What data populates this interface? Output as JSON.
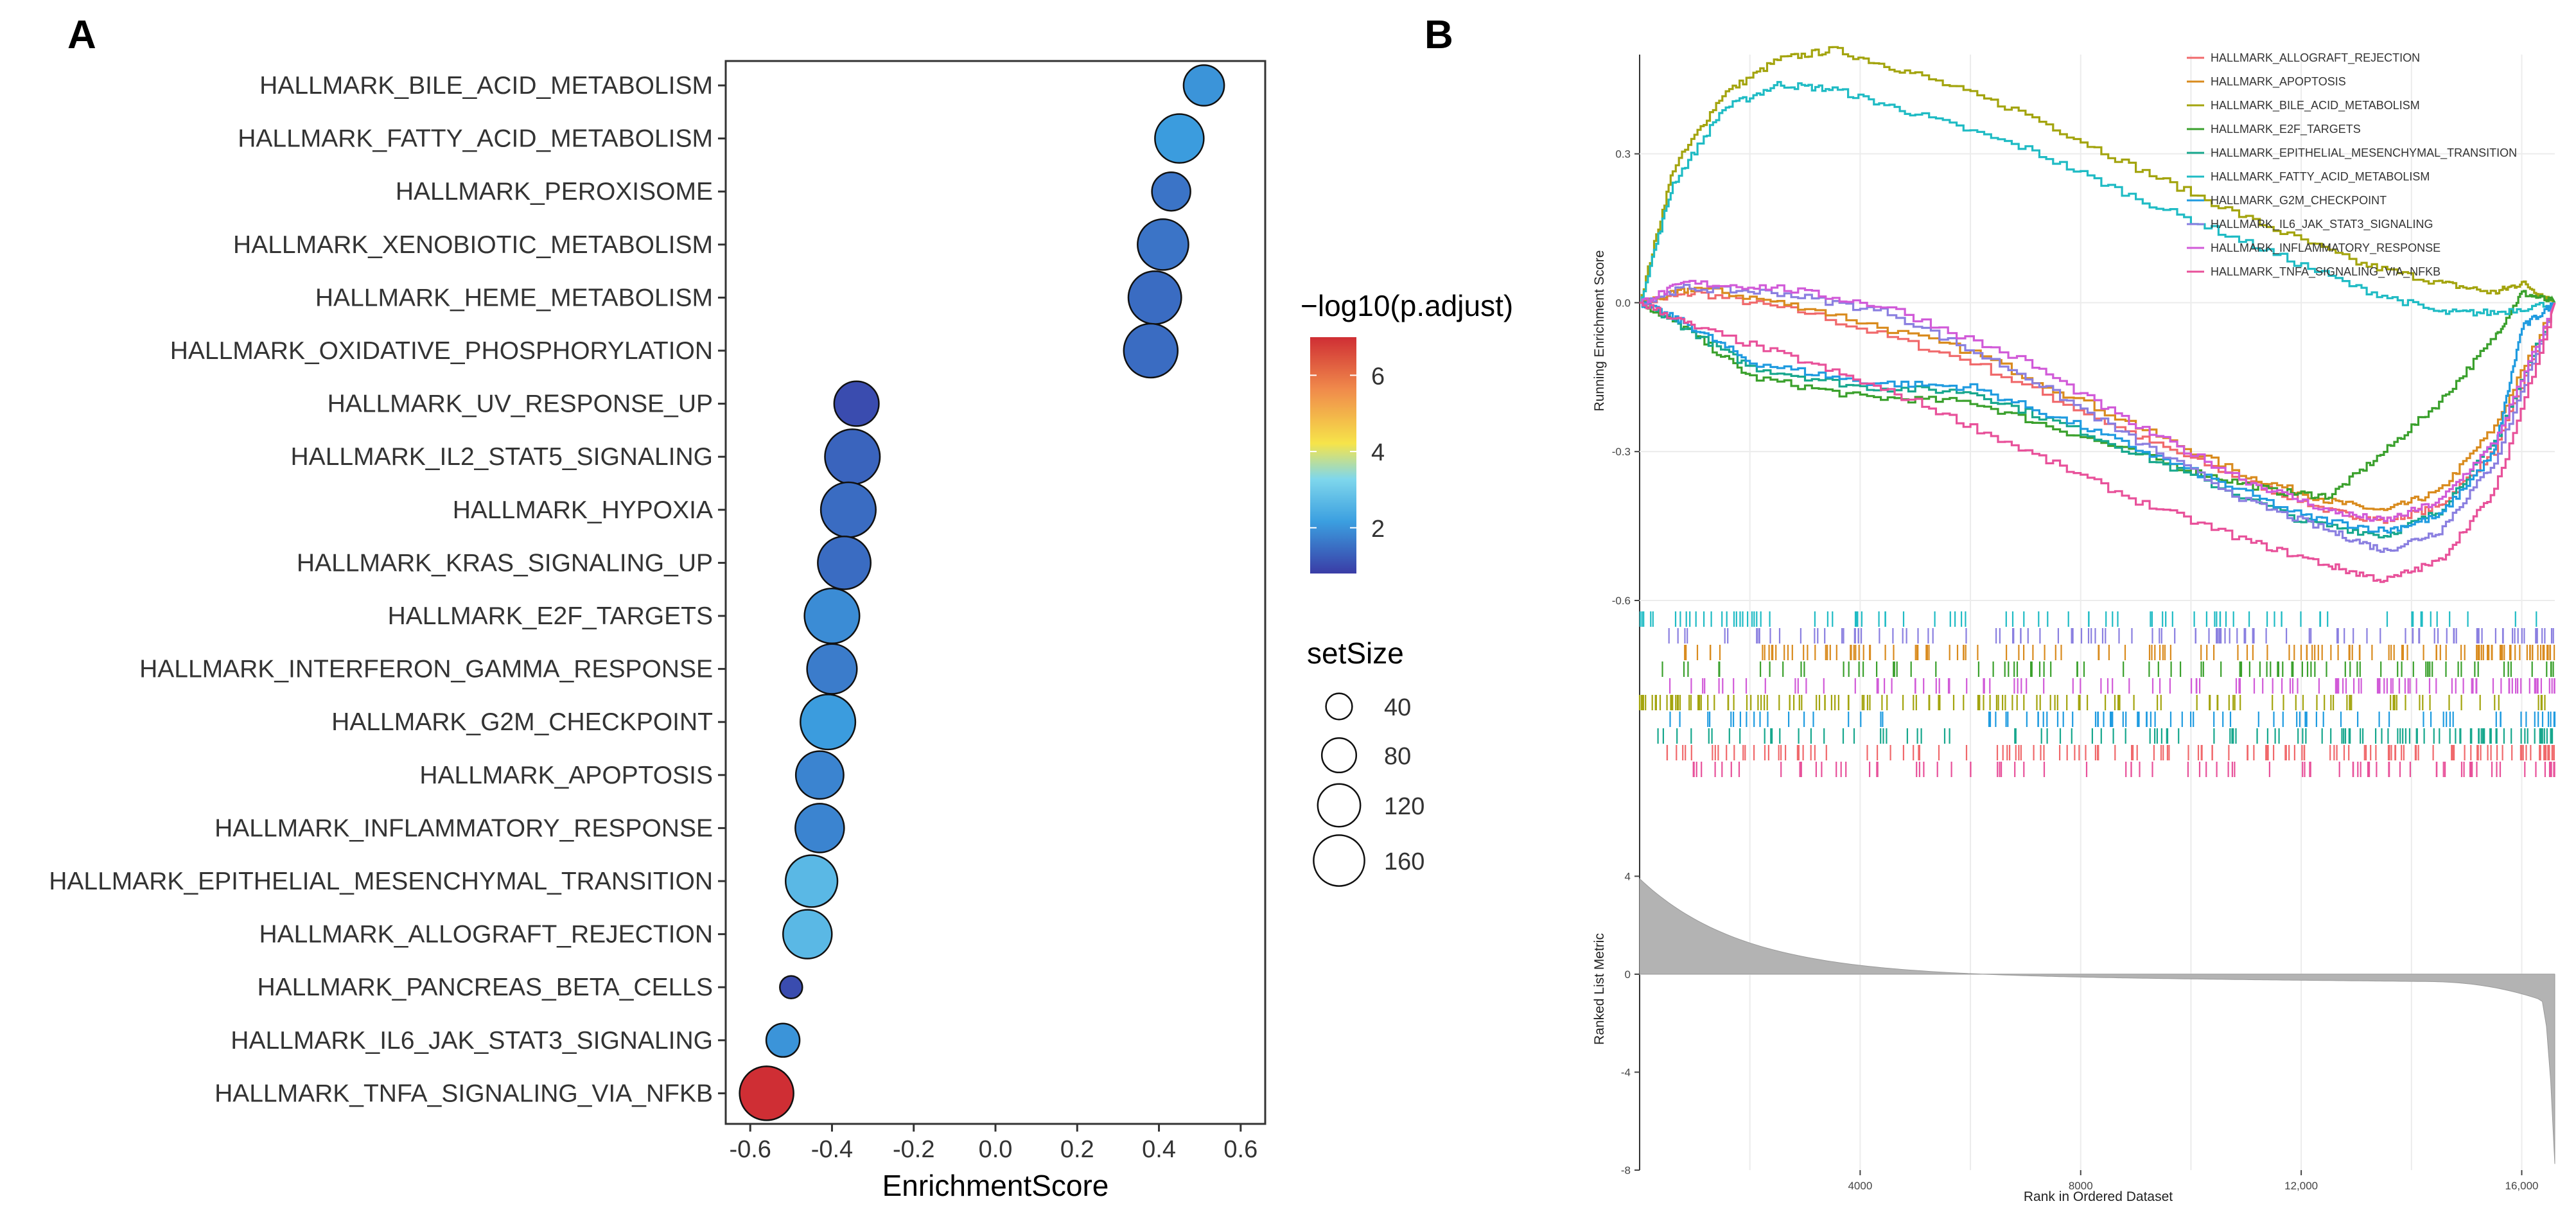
{
  "panel_labels": {
    "a": "A",
    "b": "B"
  },
  "chart_data": [
    {
      "type": "scatter",
      "subtype": "dotplot",
      "panel": "A",
      "xlabel": "EnrichmentScore",
      "xlim": [
        -0.66,
        0.66
      ],
      "xticks": [
        "-0.6",
        "-0.4",
        "-0.2",
        "0.0",
        "0.2",
        "0.4",
        "0.6"
      ],
      "xtick_values": [
        -0.6,
        -0.4,
        -0.2,
        0.0,
        0.2,
        0.4,
        0.6
      ],
      "color_legend": {
        "title": "−log10(p.adjust)",
        "ticks": [
          "2",
          "4",
          "6"
        ],
        "tick_values": [
          2,
          4,
          6
        ],
        "range": [
          0.8,
          7.0
        ],
        "colors": [
          "#3a3ca6",
          "#3b9fe0",
          "#7fd7ec",
          "#f6e44a",
          "#f08a4b",
          "#cf2e34"
        ]
      },
      "size_legend": {
        "title": "setSize",
        "labels": [
          "40",
          "80",
          "120",
          "160"
        ],
        "values": [
          40,
          80,
          120,
          160
        ]
      },
      "terms": [
        {
          "name": "HALLMARK_BILE_ACID_METABOLISM",
          "es": 0.51,
          "nlogp": 1.9,
          "size": 110
        },
        {
          "name": "HALLMARK_FATTY_ACID_METABOLISM",
          "es": 0.45,
          "nlogp": 2.0,
          "size": 150
        },
        {
          "name": "HALLMARK_PEROXISOME",
          "es": 0.43,
          "nlogp": 1.5,
          "size": 100
        },
        {
          "name": "HALLMARK_XENOBIOTIC_METABOLISM",
          "es": 0.41,
          "nlogp": 1.5,
          "size": 160
        },
        {
          "name": "HALLMARK_HEME_METABOLISM",
          "es": 0.39,
          "nlogp": 1.4,
          "size": 170
        },
        {
          "name": "HALLMARK_OXIDATIVE_PHOSPHORYLATION",
          "es": 0.38,
          "nlogp": 1.4,
          "size": 175
        },
        {
          "name": "HALLMARK_UV_RESPONSE_UP",
          "es": -0.34,
          "nlogp": 1.0,
          "size": 130
        },
        {
          "name": "HALLMARK_IL2_STAT5_SIGNALING",
          "es": -0.35,
          "nlogp": 1.3,
          "size": 180
        },
        {
          "name": "HALLMARK_HYPOXIA",
          "es": -0.36,
          "nlogp": 1.4,
          "size": 180
        },
        {
          "name": "HALLMARK_KRAS_SIGNALING_UP",
          "es": -0.37,
          "nlogp": 1.4,
          "size": 170
        },
        {
          "name": "HALLMARK_E2F_TARGETS",
          "es": -0.4,
          "nlogp": 1.8,
          "size": 180
        },
        {
          "name": "HALLMARK_INTERFERON_GAMMA_RESPONSE",
          "es": -0.4,
          "nlogp": 1.6,
          "size": 155
        },
        {
          "name": "HALLMARK_G2M_CHECKPOINT",
          "es": -0.41,
          "nlogp": 2.0,
          "size": 180
        },
        {
          "name": "HALLMARK_APOPTOSIS",
          "es": -0.43,
          "nlogp": 1.7,
          "size": 145
        },
        {
          "name": "HALLMARK_INFLAMMATORY_RESPONSE",
          "es": -0.43,
          "nlogp": 1.7,
          "size": 150
        },
        {
          "name": "HALLMARK_EPITHELIAL_MESENCHYMAL_TRANSITION",
          "es": -0.45,
          "nlogp": 2.6,
          "size": 165
        },
        {
          "name": "HALLMARK_ALLOGRAFT_REJECTION",
          "es": -0.46,
          "nlogp": 2.6,
          "size": 150
        },
        {
          "name": "HALLMARK_PANCREAS_BETA_CELLS",
          "es": -0.5,
          "nlogp": 1.0,
          "size": 22
        },
        {
          "name": "HALLMARK_IL6_JAK_STAT3_SIGNALING",
          "es": -0.52,
          "nlogp": 1.9,
          "size": 75
        },
        {
          "name": "HALLMARK_TNFA_SIGNALING_VIA_NFKB",
          "es": -0.56,
          "nlogp": 7.0,
          "size": 175
        }
      ]
    },
    {
      "type": "line",
      "subtype": "gsea_plot",
      "panel": "B",
      "xlabel": "Rank in Ordered Dataset",
      "ylabel_top": "Running Enrichment Score",
      "ylabel_bottom": "Ranked List Metric",
      "xlim": [
        0,
        16600
      ],
      "xticks": [
        "4000",
        "8000",
        "12,000",
        "16,000"
      ],
      "xtick_values": [
        4000,
        8000,
        12000,
        16000
      ],
      "es_ylim": [
        -0.6,
        0.5
      ],
      "es_yticks": [
        "0.3",
        "0.0",
        "-0.3",
        "-0.6"
      ],
      "es_ytick_values": [
        0.3,
        0.0,
        -0.3,
        -0.6
      ],
      "metric_ylim": [
        -8,
        7
      ],
      "metric_yticks": [
        "4",
        "0",
        "-4",
        "-8"
      ],
      "metric_ytick_values": [
        4,
        0,
        -4,
        -8
      ],
      "series": [
        {
          "name": "HALLMARK_ALLOGRAFT_REJECTION",
          "color": "#f0696b",
          "x": [
            0,
            1000,
            3000,
            6000,
            9000,
            11000,
            12500,
            13500,
            14500,
            15500,
            16600
          ],
          "y": [
            0.0,
            0.02,
            -0.02,
            -0.12,
            -0.27,
            -0.36,
            -0.42,
            -0.44,
            -0.41,
            -0.3,
            0.0
          ]
        },
        {
          "name": "HALLMARK_APOPTOSIS",
          "color": "#d98b1e",
          "x": [
            0,
            1000,
            3000,
            6000,
            9000,
            11000,
            12500,
            13500,
            14500,
            15500,
            16600
          ],
          "y": [
            0.0,
            0.03,
            -0.01,
            -0.1,
            -0.25,
            -0.35,
            -0.4,
            -0.42,
            -0.38,
            -0.25,
            0.0
          ]
        },
        {
          "name": "HALLMARK_BILE_ACID_METABOLISM",
          "color": "#a3a40e",
          "x": [
            0,
            600,
            1500,
            2500,
            3500,
            5000,
            7000,
            9000,
            11000,
            13000,
            14500,
            15500,
            16000,
            16600
          ],
          "y": [
            0.0,
            0.27,
            0.42,
            0.49,
            0.51,
            0.46,
            0.38,
            0.27,
            0.17,
            0.08,
            0.04,
            0.02,
            0.04,
            0.0
          ]
        },
        {
          "name": "HALLMARK_E2F_TARGETS",
          "color": "#3aa02c",
          "x": [
            0,
            800,
            2000,
            4000,
            6000,
            8000,
            10000,
            11500,
            12500,
            13500,
            14500,
            15500,
            16000,
            16600
          ],
          "y": [
            0.0,
            -0.05,
            -0.15,
            -0.19,
            -0.2,
            -0.27,
            -0.34,
            -0.38,
            -0.39,
            -0.3,
            -0.2,
            -0.07,
            0.02,
            0.0
          ]
        },
        {
          "name": "HALLMARK_EPITHELIAL_MESENCHYMAL_TRANSITION",
          "color": "#17a78d",
          "x": [
            0,
            800,
            2000,
            4000,
            6000,
            8000,
            10000,
            12000,
            13500,
            14500,
            15500,
            16600
          ],
          "y": [
            0.0,
            -0.05,
            -0.13,
            -0.17,
            -0.18,
            -0.26,
            -0.35,
            -0.44,
            -0.47,
            -0.42,
            -0.28,
            0.0
          ]
        },
        {
          "name": "HALLMARK_FATTY_ACID_METABOLISM",
          "color": "#1fbbc4",
          "x": [
            0,
            600,
            1500,
            2500,
            3500,
            5000,
            7000,
            9000,
            11000,
            13000,
            14500,
            15500,
            16600
          ],
          "y": [
            0.0,
            0.24,
            0.39,
            0.44,
            0.43,
            0.38,
            0.31,
            0.21,
            0.12,
            0.03,
            -0.02,
            -0.02,
            0.0
          ]
        },
        {
          "name": "HALLMARK_G2M_CHECKPOINT",
          "color": "#1f9be0",
          "x": [
            0,
            800,
            2000,
            4000,
            6000,
            8000,
            10000,
            12000,
            13500,
            14500,
            15500,
            16000,
            16600
          ],
          "y": [
            0.0,
            -0.04,
            -0.12,
            -0.16,
            -0.17,
            -0.25,
            -0.34,
            -0.43,
            -0.46,
            -0.43,
            -0.3,
            -0.05,
            0.0
          ]
        },
        {
          "name": "HALLMARK_IL6_JAK_STAT3_SIGNALING",
          "color": "#8a7fe0",
          "x": [
            0,
            800,
            2500,
            4500,
            7000,
            9000,
            11000,
            12500,
            13500,
            14500,
            15500,
            16600
          ],
          "y": [
            0.0,
            0.03,
            0.02,
            -0.02,
            -0.15,
            -0.28,
            -0.4,
            -0.46,
            -0.5,
            -0.46,
            -0.32,
            0.0
          ]
        },
        {
          "name": "HALLMARK_INFLAMMATORY_RESPONSE",
          "color": "#d15ad8",
          "x": [
            0,
            800,
            2500,
            4500,
            7000,
            9000,
            11000,
            12500,
            13500,
            14500,
            15500,
            16600
          ],
          "y": [
            0.0,
            0.04,
            0.03,
            -0.01,
            -0.12,
            -0.25,
            -0.36,
            -0.42,
            -0.44,
            -0.4,
            -0.28,
            0.0
          ]
        },
        {
          "name": "HALLMARK_TNFA_SIGNALING_VIA_NFKB",
          "color": "#e8519a",
          "x": [
            0,
            1000,
            3000,
            5000,
            7000,
            9000,
            11000,
            12500,
            13500,
            14500,
            15500,
            16600
          ],
          "y": [
            0.0,
            -0.05,
            -0.12,
            -0.2,
            -0.3,
            -0.4,
            -0.48,
            -0.53,
            -0.56,
            -0.52,
            -0.38,
            0.0
          ]
        }
      ]
    }
  ]
}
